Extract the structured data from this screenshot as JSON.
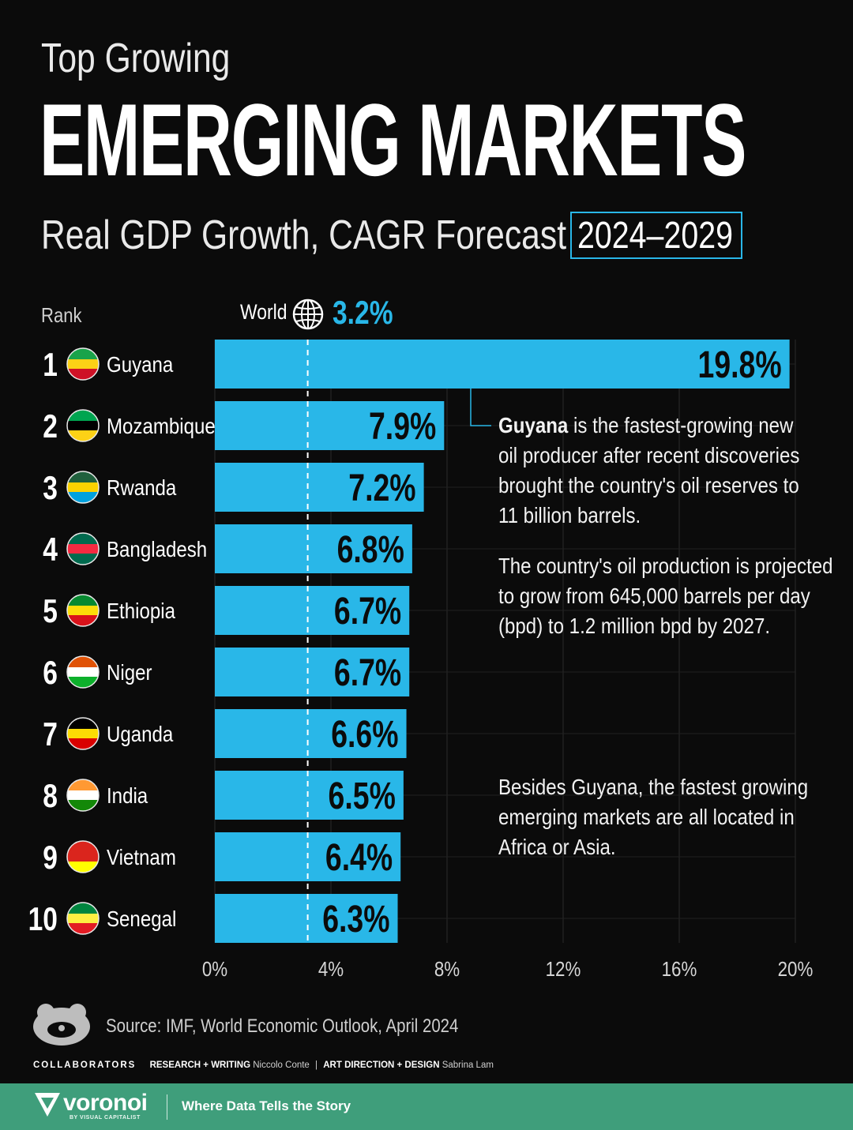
{
  "header": {
    "kicker": "Top Growing",
    "title": "EMERGING MARKETS",
    "subtitle": "Real GDP Growth, CAGR Forecast",
    "period": "2024–2029"
  },
  "rank_header": "Rank",
  "world": {
    "label": "World",
    "value": "3.2%"
  },
  "chart_data": {
    "type": "bar",
    "orientation": "horizontal",
    "categories": [
      "Guyana",
      "Mozambique",
      "Rwanda",
      "Bangladesh",
      "Ethiopia",
      "Niger",
      "Uganda",
      "India",
      "Vietnam",
      "Senegal"
    ],
    "ranks": [
      "1",
      "2",
      "3",
      "4",
      "5",
      "6",
      "7",
      "8",
      "9",
      "10"
    ],
    "values": [
      19.8,
      7.9,
      7.2,
      6.8,
      6.7,
      6.7,
      6.6,
      6.5,
      6.4,
      6.3
    ],
    "value_labels": [
      "19.8%",
      "7.9%",
      "7.2%",
      "6.8%",
      "6.7%",
      "6.7%",
      "6.6%",
      "6.5%",
      "6.4%",
      "6.3%"
    ],
    "xlim": [
      0,
      20
    ],
    "xticks": [
      0,
      4,
      8,
      12,
      16,
      20
    ],
    "xtick_labels": [
      "0%",
      "4%",
      "8%",
      "12%",
      "16%",
      "20%"
    ],
    "reference_line": {
      "label": "World",
      "value": 3.2
    },
    "bar_color": "#29b7e8",
    "grid": true
  },
  "annotations": {
    "guyana_bold": "Guyana",
    "guyana_line1": " is the fastest-growing new",
    "guyana_line2": "oil producer after recent discoveries",
    "guyana_line3": "brought the country's oil reserves to",
    "guyana_line4": "11 billion barrels.",
    "production_line1": "The country's oil production is projected",
    "production_line2": "to grow from 645,000 barrels per day",
    "production_line3": "(bpd) to 1.2 million bpd by 2027.",
    "regions_line1": "Besides Guyana, the fastest growing",
    "regions_line2": "emerging markets are all located in",
    "regions_line3": "Africa or Asia."
  },
  "source": "Source: IMF, World Economic Outlook, April 2024",
  "credits": {
    "collaborators": "COLLABORATORS",
    "research_label": "RESEARCH + WRITING",
    "research_name": "Niccolo Conte",
    "separator": "|",
    "design_label": "ART DIRECTION + DESIGN",
    "design_name": "Sabrina Lam"
  },
  "footer": {
    "brand": "voronoi",
    "brand_sub": "BY VISUAL CAPITALIST",
    "tagline": "Where Data Tells the Story",
    "color": "#3f9e7b"
  },
  "flag_icons": [
    "guyana-flag-icon",
    "mozambique-flag-icon",
    "rwanda-flag-icon",
    "bangladesh-flag-icon",
    "ethiopia-flag-icon",
    "niger-flag-icon",
    "uganda-flag-icon",
    "india-flag-icon",
    "vietnam-flag-icon",
    "senegal-flag-icon"
  ]
}
